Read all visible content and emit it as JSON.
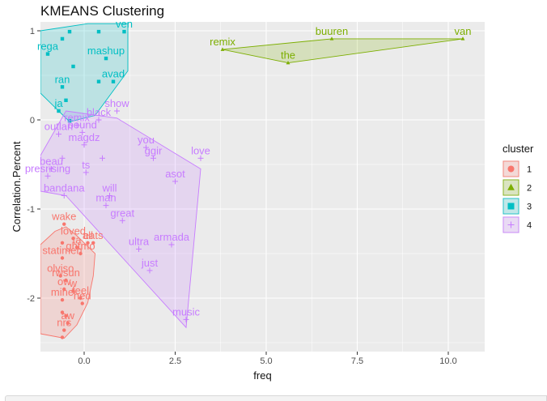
{
  "chart_data": {
    "type": "scatter",
    "title": "KMEANS Clustering",
    "xlabel": "freq",
    "ylabel": "Correlation.Percent",
    "xlim": [
      -1.2,
      11.0
    ],
    "ylim": [
      -2.6,
      1.1
    ],
    "x_ticks": [
      0.0,
      2.5,
      5.0,
      7.5,
      10.0
    ],
    "x_tick_labels": [
      "0.0",
      "2.5",
      "5.0",
      "7.5",
      "10.0"
    ],
    "y_ticks": [
      1,
      0,
      -1,
      -2
    ],
    "y_tick_labels": [
      "1",
      "0",
      "-1",
      "-2"
    ],
    "grid": true,
    "legend": {
      "title": "cluster",
      "position": "right",
      "entries": [
        {
          "label": "1",
          "color": "#F8766D",
          "shape": "circle"
        },
        {
          "label": "2",
          "color": "#7CAE00",
          "shape": "triangle"
        },
        {
          "label": "3",
          "color": "#00BFC4",
          "shape": "square"
        },
        {
          "label": "4",
          "color": "#C77CFF",
          "shape": "cross"
        }
      ]
    },
    "series": [
      {
        "name": "1",
        "color": "#F8766D",
        "hull": [
          [
            -0.5,
            -1.2
          ],
          [
            -0.2,
            -1.3
          ],
          [
            0.3,
            -1.5
          ],
          [
            0.25,
            -1.75
          ],
          [
            0.1,
            -2.05
          ],
          [
            -0.2,
            -2.3
          ],
          [
            -0.55,
            -2.45
          ],
          [
            -1.2,
            -2.4
          ],
          [
            -1.2,
            -1.4
          ],
          [
            -0.8,
            -1.25
          ]
        ],
        "points": [
          {
            "x": -0.55,
            "y": -1.17,
            "label": "wake"
          },
          {
            "x": -0.3,
            "y": -1.33,
            "label": "loved"
          },
          {
            "x": -0.6,
            "y": -1.38,
            "label": ""
          },
          {
            "x": 0.1,
            "y": -1.38,
            "label": "all"
          },
          {
            "x": 0.25,
            "y": -1.38,
            "label": "eats"
          },
          {
            "x": -0.2,
            "y": -1.43,
            "label": "ta"
          },
          {
            "x": -0.1,
            "y": -1.5,
            "label": "ghtmo"
          },
          {
            "x": -0.6,
            "y": -1.55,
            "label": "statimen"
          },
          {
            "x": -0.65,
            "y": -1.75,
            "label": "olviso"
          },
          {
            "x": -0.5,
            "y": -1.8,
            "label": "rwsun"
          },
          {
            "x": -0.55,
            "y": -1.9,
            "label": "ow"
          },
          {
            "x": -0.3,
            "y": -1.92,
            "label": "w"
          },
          {
            "x": -0.6,
            "y": -2.02,
            "label": "mine"
          },
          {
            "x": -0.1,
            "y": -2.0,
            "label": "feel"
          },
          {
            "x": -0.05,
            "y": -2.06,
            "label": "hed"
          },
          {
            "x": -0.6,
            "y": -2.16,
            "label": ""
          },
          {
            "x": -0.5,
            "y": -2.2,
            "label": ""
          },
          {
            "x": -0.45,
            "y": -2.28,
            "label": "aw"
          },
          {
            "x": -0.55,
            "y": -2.36,
            "label": "nrs"
          },
          {
            "x": -0.6,
            "y": -2.44,
            "label": ""
          }
        ]
      },
      {
        "name": "2",
        "color": "#7CAE00",
        "hull": [
          [
            3.8,
            0.79
          ],
          [
            6.8,
            0.91
          ],
          [
            10.4,
            0.91
          ],
          [
            5.6,
            0.64
          ]
        ],
        "points": [
          {
            "x": 3.8,
            "y": 0.79,
            "label": "remix"
          },
          {
            "x": 6.8,
            "y": 0.91,
            "label": "buuren"
          },
          {
            "x": 10.4,
            "y": 0.91,
            "label": "van"
          },
          {
            "x": 5.6,
            "y": 0.64,
            "label": "the"
          }
        ]
      },
      {
        "name": "3",
        "color": "#00BFC4",
        "hull": [
          [
            -1.2,
            1.0
          ],
          [
            0.1,
            1.08
          ],
          [
            1.2,
            1.08
          ],
          [
            1.2,
            0.85
          ],
          [
            1.2,
            0.55
          ],
          [
            0.3,
            0.05
          ],
          [
            -0.4,
            -0.02
          ],
          [
            -1.2,
            0.3
          ]
        ],
        "points": [
          {
            "x": -0.4,
            "y": 0.99,
            "label": ""
          },
          {
            "x": 0.4,
            "y": 0.99,
            "label": ""
          },
          {
            "x": 1.1,
            "y": 0.99,
            "label": "ven"
          },
          {
            "x": -0.6,
            "y": 0.91,
            "label": ""
          },
          {
            "x": -1.0,
            "y": 0.74,
            "label": "rega"
          },
          {
            "x": 0.6,
            "y": 0.69,
            "label": "mashup"
          },
          {
            "x": -0.3,
            "y": 0.6,
            "label": ""
          },
          {
            "x": 0.4,
            "y": 0.43,
            "label": ""
          },
          {
            "x": -0.6,
            "y": 0.37,
            "label": "ran"
          },
          {
            "x": 0.8,
            "y": 0.43,
            "label": "avad"
          },
          {
            "x": -0.5,
            "y": 0.22,
            "label": ""
          },
          {
            "x": -0.7,
            "y": 0.1,
            "label": "ja"
          },
          {
            "x": -0.4,
            "y": -0.01,
            "label": ""
          }
        ]
      },
      {
        "name": "4",
        "color": "#C77CFF",
        "hull": [
          [
            -0.5,
            0.1
          ],
          [
            0.9,
            0.02
          ],
          [
            3.2,
            -0.55
          ],
          [
            2.8,
            -2.33
          ],
          [
            -0.5,
            -0.85
          ],
          [
            -1.2,
            -0.8
          ],
          [
            -1.2,
            -0.4
          ]
        ],
        "points": [
          {
            "x": 0.9,
            "y": 0.1,
            "label": "show"
          },
          {
            "x": 0.4,
            "y": 0.0,
            "label": "black"
          },
          {
            "x": -0.2,
            "y": -0.06,
            "label": "remix"
          },
          {
            "x": -0.7,
            "y": -0.16,
            "label": "outlan"
          },
          {
            "x": -0.05,
            "y": -0.14,
            "label": "bound"
          },
          {
            "x": 0.0,
            "y": -0.28,
            "label": "magdz"
          },
          {
            "x": 1.7,
            "y": -0.31,
            "label": "you"
          },
          {
            "x": -0.6,
            "y": -0.43,
            "label": ""
          },
          {
            "x": 0.5,
            "y": -0.43,
            "label": ""
          },
          {
            "x": 1.9,
            "y": -0.43,
            "label": "ggir"
          },
          {
            "x": 3.2,
            "y": -0.43,
            "label": "love"
          },
          {
            "x": -0.9,
            "y": -0.55,
            "label": "beau"
          },
          {
            "x": -1.0,
            "y": -0.63,
            "label": "presrising"
          },
          {
            "x": 0.05,
            "y": -0.59,
            "label": "ts"
          },
          {
            "x": -0.55,
            "y": -0.85,
            "label": "bandana"
          },
          {
            "x": 0.7,
            "y": -0.85,
            "label": "will"
          },
          {
            "x": 2.5,
            "y": -0.69,
            "label": "asot"
          },
          {
            "x": 0.6,
            "y": -0.96,
            "label": "man"
          },
          {
            "x": 1.05,
            "y": -1.13,
            "label": "great"
          },
          {
            "x": 2.4,
            "y": -1.4,
            "label": "armada"
          },
          {
            "x": 1.5,
            "y": -1.45,
            "label": "ultra"
          },
          {
            "x": 1.8,
            "y": -1.69,
            "label": "just"
          },
          {
            "x": 2.8,
            "y": -2.24,
            "label": "music"
          }
        ]
      }
    ]
  }
}
